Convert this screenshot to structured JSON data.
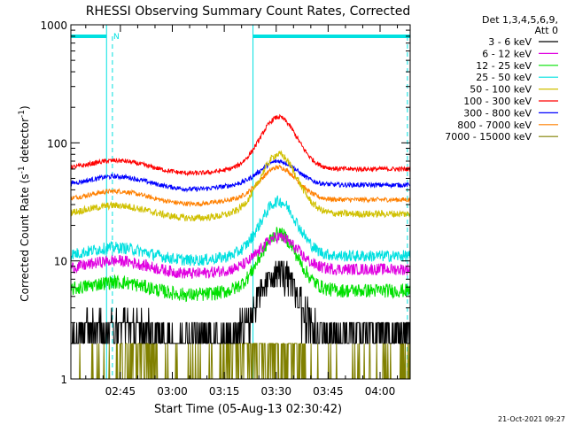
{
  "chart_data": {
    "type": "line",
    "title": "RHESSI Observing Summary Count Rates, Corrected",
    "xlabel": "Start Time (05-Aug-13 02:30:42)",
    "ylabel": "Corrected Count Rate (s",
    "ylabel_sup1": "-1",
    "ylabel_mid": " detector",
    "ylabel_sup2": "-1",
    "ylabel_end": ")",
    "x_unit": "minutes since 02:30:42",
    "xlim": [
      0,
      98
    ],
    "ylim": [
      1,
      1000
    ],
    "yscale": "log",
    "x_ticks": [
      {
        "t": 14.3,
        "label": "02:45"
      },
      {
        "t": 29.3,
        "label": "03:00"
      },
      {
        "t": 44.3,
        "label": "03:15"
      },
      {
        "t": 59.3,
        "label": "03:30"
      },
      {
        "t": 74.3,
        "label": "03:45"
      },
      {
        "t": 89.3,
        "label": "04:00"
      }
    ],
    "y_ticks": [
      {
        "v": 1,
        "label": "1"
      },
      {
        "v": 10,
        "label": "10"
      },
      {
        "v": 100,
        "label": "100"
      },
      {
        "v": 1000,
        "label": "1000"
      }
    ],
    "legend_header": [
      "Det 1,3,4,5,6,9,",
      "Att 0"
    ],
    "legend_position": "right",
    "series": [
      {
        "name": "3 - 6 keV",
        "color": "#000000",
        "base": 2.6,
        "peak": 8.5,
        "noise": 0.12,
        "step": 1
      },
      {
        "name": "6 - 12 keV",
        "color": "#e000e0",
        "base": 8.5,
        "peak": 16,
        "noise": 0.05,
        "step": 0
      },
      {
        "name": "12 - 25 keV",
        "color": "#00e000",
        "base": 5.6,
        "peak": 17,
        "noise": 0.06,
        "step": 0
      },
      {
        "name": "25 - 50 keV",
        "color": "#00e0e0",
        "base": 11,
        "peak": 32,
        "noise": 0.05,
        "step": 0
      },
      {
        "name": "50 - 100 keV",
        "color": "#d0c000",
        "base": 25,
        "peak": 80,
        "noise": 0.03,
        "step": 0
      },
      {
        "name": "100 - 300 keV",
        "color": "#ff0000",
        "base": 60,
        "peak": 165,
        "noise": 0.02,
        "step": 0
      },
      {
        "name": "300 - 800 keV",
        "color": "#0000ff",
        "base": 44,
        "peak": 70,
        "noise": 0.02,
        "step": 0
      },
      {
        "name": "800 - 7000 keV",
        "color": "#ff8000",
        "base": 33,
        "peak": 62,
        "noise": 0.02,
        "step": 0
      },
      {
        "name": "7000 - 15000 keV",
        "color": "#808000",
        "base": 1.0,
        "peak": 2.6,
        "noise": 0.0,
        "step": 2
      }
    ],
    "night_intervals": [
      [
        0,
        10.3
      ],
      [
        52.6,
        98
      ]
    ],
    "sdm_marker": {
      "t": 11.5,
      "label": "N"
    },
    "timestamp": "21-Oct-2021 09:27"
  }
}
